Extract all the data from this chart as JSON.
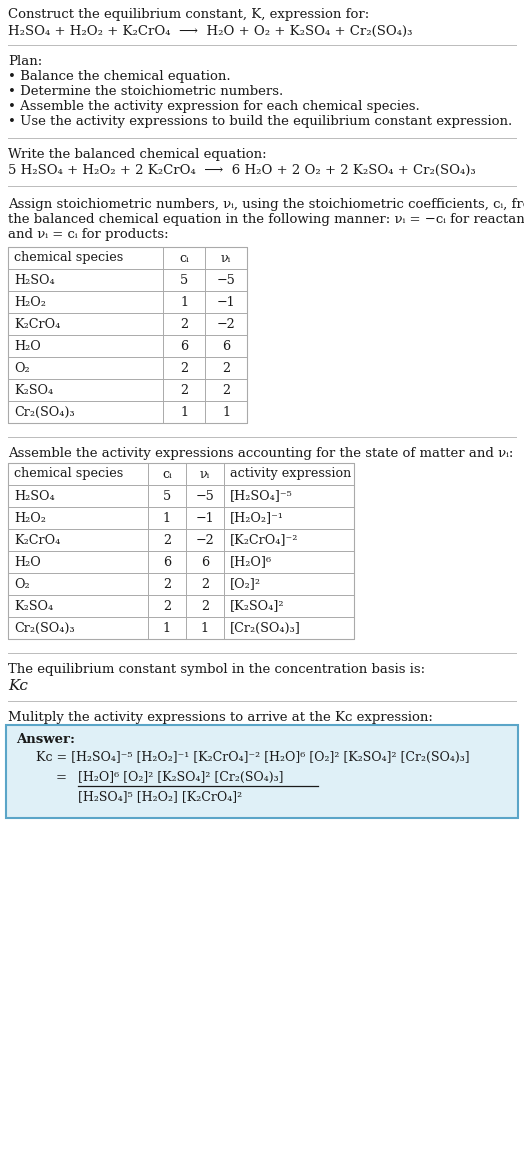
{
  "title_line1": "Construct the equilibrium constant, K, expression for:",
  "title_line2_parts": [
    "H₂SO₄ + H₂O₂ + K₂CrO₄  ⟶  H₂O + O₂ + K₂SO₄ + Cr₂(SO₄)₃"
  ],
  "plan_header": "Plan:",
  "plan_items": [
    "• Balance the chemical equation.",
    "• Determine the stoichiometric numbers.",
    "• Assemble the activity expression for each chemical species.",
    "• Use the activity expressions to build the equilibrium constant expression."
  ],
  "balanced_header": "Write the balanced chemical equation:",
  "balanced_eq": "5 H₂SO₄ + H₂O₂ + 2 K₂CrO₄  ⟶  6 H₂O + 2 O₂ + 2 K₂SO₄ + Cr₂(SO₄)₃",
  "stoich_text_lines": [
    "Assign stoichiometric numbers, νᵢ, using the stoichiometric coefficients, cᵢ, from",
    "the balanced chemical equation in the following manner: νᵢ = −cᵢ for reactants",
    "and νᵢ = cᵢ for products:"
  ],
  "table1_headers": [
    "chemical species",
    "cᵢ",
    "νᵢ"
  ],
  "table1_data": [
    [
      "H₂SO₄",
      "5",
      "−5"
    ],
    [
      "H₂O₂",
      "1",
      "−1"
    ],
    [
      "K₂CrO₄",
      "2",
      "−2"
    ],
    [
      "H₂O",
      "6",
      "6"
    ],
    [
      "O₂",
      "2",
      "2"
    ],
    [
      "K₂SO₄",
      "2",
      "2"
    ],
    [
      "Cr₂(SO₄)₃",
      "1",
      "1"
    ]
  ],
  "activity_header": "Assemble the activity expressions accounting for the state of matter and νᵢ:",
  "table2_headers": [
    "chemical species",
    "cᵢ",
    "νᵢ",
    "activity expression"
  ],
  "table2_data": [
    [
      "H₂SO₄",
      "5",
      "−5",
      "[H₂SO₄]⁻⁵"
    ],
    [
      "H₂O₂",
      "1",
      "−1",
      "[H₂O₂]⁻¹"
    ],
    [
      "K₂CrO₄",
      "2",
      "−2",
      "[K₂CrO₄]⁻²"
    ],
    [
      "H₂O",
      "6",
      "6",
      "[H₂O]⁶"
    ],
    [
      "O₂",
      "2",
      "2",
      "[O₂]²"
    ],
    [
      "K₂SO₄",
      "2",
      "2",
      "[K₂SO₄]²"
    ],
    [
      "Cr₂(SO₄)₃",
      "1",
      "1",
      "[Cr₂(SO₄)₃]"
    ]
  ],
  "kc_header": "The equilibrium constant symbol in the concentration basis is:",
  "kc_symbol": "Kᴄ",
  "multiply_header": "Mulitply the activity expressions to arrive at the Kᴄ expression:",
  "answer_label": "Answer:",
  "ans_line1a": "Kᴄ = [H₂SO₄]⁻⁵ [H₂O₂]⁻¹ [K₂CrO₄]⁻² [H₂O]⁶ [O₂]² [K₂SO₄]² [Cr₂(SO₄)₃]",
  "ans_eq_sign": "=",
  "ans_num": "[H₂O]⁶ [O₂]² [K₂SO₄]² [Cr₂(SO₄)₃]",
  "ans_den": "[H₂SO₄]⁵ [H₂O₂] [K₂CrO₄]²",
  "bg_color": "#ffffff",
  "answer_box_bg": "#dff0f7",
  "answer_box_border": "#5aa5c8",
  "text_color": "#1a1a1a",
  "table_line_color": "#aaaaaa",
  "sep_color": "#bbbbbb"
}
